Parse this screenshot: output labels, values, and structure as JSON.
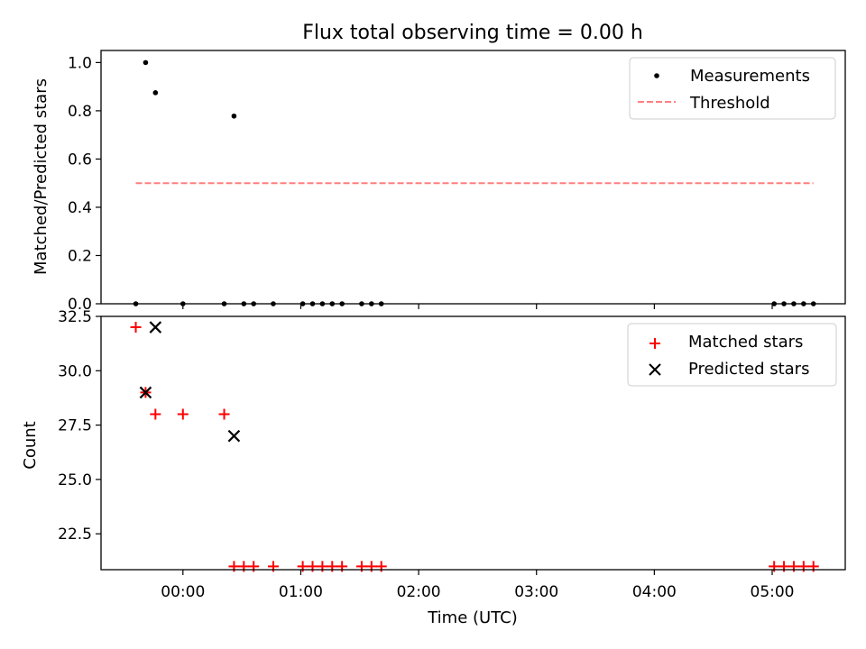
{
  "title": "Flux total observing time = 0.00 h",
  "chart_data": [
    {
      "type": "scatter",
      "ylabel": "Matched/Predicted stars",
      "xlabel": "",
      "ylim": [
        0,
        1.05
      ],
      "yticks": [
        0.0,
        0.2,
        0.4,
        0.6,
        0.8,
        1.0
      ],
      "ytick_labels": [
        "0.0",
        "0.2",
        "0.4",
        "0.6",
        "0.8",
        "1.0"
      ],
      "legend_position": "top-right",
      "series": [
        {
          "name": "Measurements",
          "marker": "dot",
          "color": "#000000",
          "x": [
            "-00:24",
            "-00:19",
            "-00:14",
            "00:00",
            "00:21",
            "00:26",
            "00:31",
            "00:36",
            "00:46",
            "01:01",
            "01:06",
            "01:11",
            "01:16",
            "01:21",
            "01:31",
            "01:36",
            "01:41",
            "05:01",
            "05:06",
            "05:11",
            "05:16",
            "05:21"
          ],
          "y": [
            0,
            1.0,
            0.875,
            0,
            0,
            0.778,
            0,
            0,
            0,
            0,
            0,
            0,
            0,
            0,
            0,
            0,
            0,
            0,
            0,
            0,
            0,
            0
          ]
        },
        {
          "name": "Threshold",
          "marker": "dashed-line",
          "color": "#ff7f7f",
          "x": [
            "-00:24",
            "05:21"
          ],
          "y": [
            0.5,
            0.5
          ]
        }
      ]
    },
    {
      "type": "scatter",
      "ylabel": "Count",
      "xlabel": "Time (UTC)",
      "ylim": [
        20.85,
        32.5
      ],
      "yticks": [
        22.5,
        25.0,
        27.5,
        30.0,
        32.5
      ],
      "ytick_labels": [
        "22.5",
        "25.0",
        "27.5",
        "30.0",
        "32.5"
      ],
      "xticks": [
        "00:00",
        "01:00",
        "02:00",
        "03:00",
        "04:00",
        "05:00"
      ],
      "legend_position": "top-right",
      "series": [
        {
          "name": "Matched stars",
          "marker": "plus",
          "color": "#ff0000",
          "x": [
            "-00:24",
            "-00:19",
            "-00:14",
            "00:00",
            "00:21",
            "00:26",
            "00:31",
            "00:36",
            "00:46",
            "01:01",
            "01:06",
            "01:11",
            "01:16",
            "01:21",
            "01:31",
            "01:36",
            "01:41",
            "05:01",
            "05:06",
            "05:11",
            "05:16",
            "05:21"
          ],
          "y": [
            32,
            29,
            28,
            28,
            28,
            21,
            21,
            21,
            21,
            21,
            21,
            21,
            21,
            21,
            21,
            21,
            21,
            21,
            21,
            21,
            21,
            21
          ]
        },
        {
          "name": "Predicted stars",
          "marker": "x",
          "color": "#000000",
          "x": [
            "-00:19",
            "-00:14",
            "00:26"
          ],
          "y": [
            29,
            32,
            27
          ]
        }
      ]
    }
  ]
}
